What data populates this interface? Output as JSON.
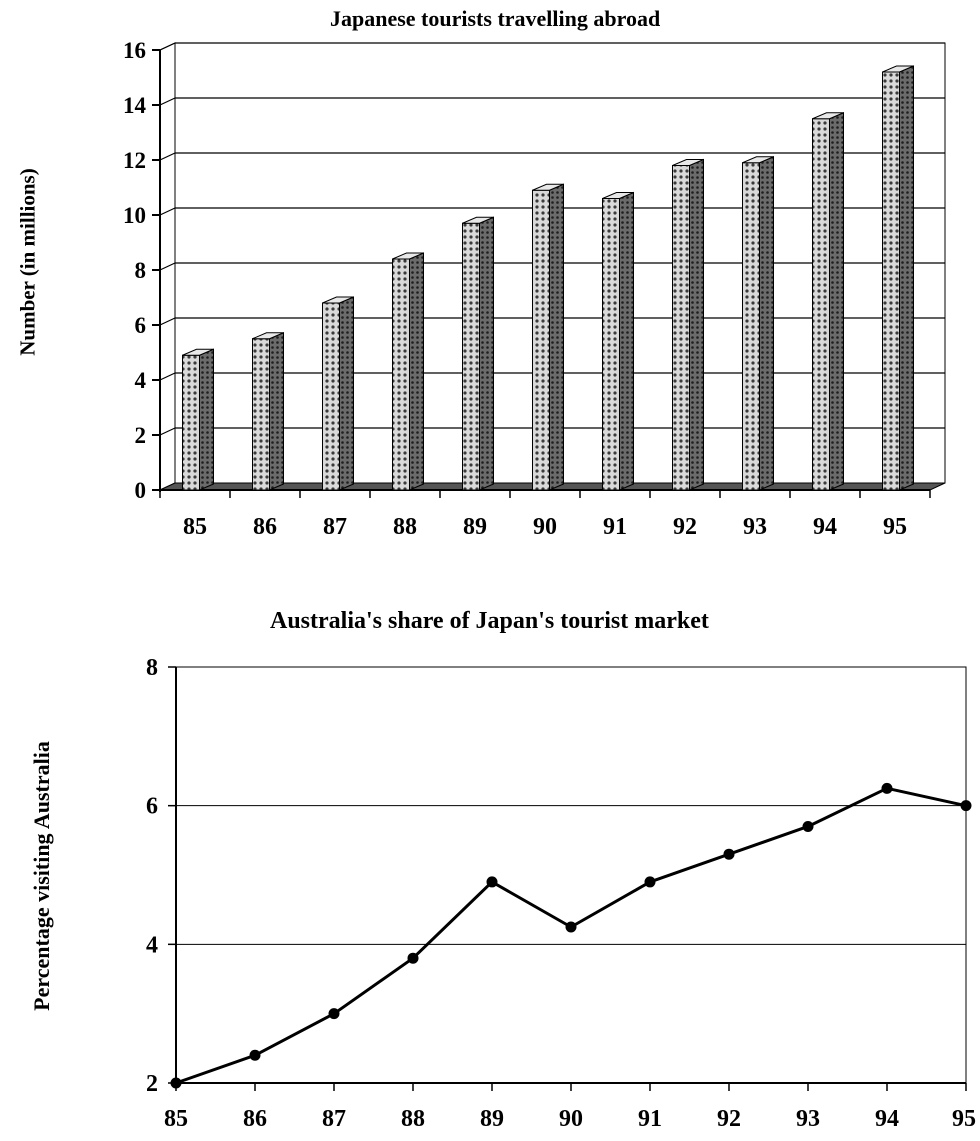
{
  "chart_data": [
    {
      "type": "bar",
      "title": "Japanese tourists travelling abroad",
      "xlabel": "",
      "ylabel": "Number (in millions)",
      "categories": [
        "85",
        "86",
        "87",
        "88",
        "89",
        "90",
        "91",
        "92",
        "93",
        "94",
        "95"
      ],
      "values": [
        4.9,
        5.5,
        6.8,
        8.4,
        9.7,
        10.9,
        10.6,
        11.8,
        11.9,
        13.5,
        15.2
      ],
      "ylim": [
        0,
        16
      ],
      "yticks": [
        "0",
        "2",
        "4",
        "6",
        "8",
        "10",
        "12",
        "14",
        "16"
      ],
      "grid": true,
      "style": "3d"
    },
    {
      "type": "line",
      "title": "Australia's share of Japan's tourist market",
      "xlabel": "",
      "ylabel": "Percentage visiting Australia",
      "x": [
        "85",
        "86",
        "87",
        "88",
        "89",
        "90",
        "91",
        "92",
        "93",
        "94",
        "95"
      ],
      "values": [
        2.0,
        2.4,
        3.0,
        3.8,
        4.9,
        4.25,
        4.9,
        5.3,
        5.7,
        6.25,
        6.0
      ],
      "ylim": [
        2,
        8
      ],
      "yticks": [
        "2",
        "4",
        "6",
        "8"
      ],
      "grid": true,
      "markers": true
    }
  ],
  "colors": {
    "bar_front": "#d9d9d9",
    "bar_side": "#6b6b6b",
    "line": "#000000",
    "grid": "#000000"
  }
}
